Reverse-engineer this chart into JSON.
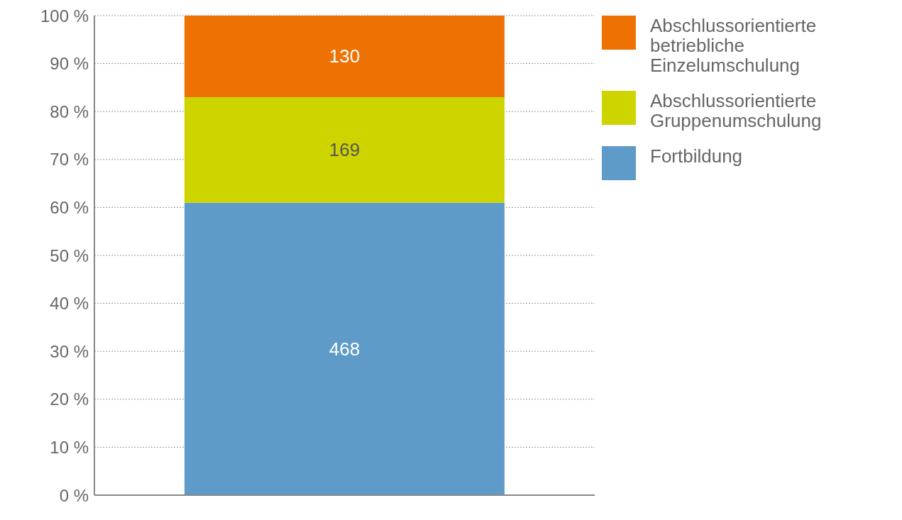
{
  "chart_data": {
    "type": "bar",
    "stacked": true,
    "categories": [
      null
    ],
    "series": [
      {
        "name": "Fortbildung",
        "color": "#5e9bc8",
        "values": [
          61.0
        ]
      },
      {
        "name": "Abschlussorientierte Gruppenumschulung",
        "color": "#cdd400",
        "values": [
          22.0
        ]
      },
      {
        "name": "Abschlussorientierte betriebliche Einzelumschulung",
        "color": "#ee7203",
        "values": [
          17.0
        ]
      }
    ],
    "annotations": [
      "468",
      "169",
      "130"
    ],
    "ylim": [
      0,
      100
    ],
    "yticks": [
      {
        "value": 0,
        "label": "0 %"
      },
      {
        "value": 10,
        "label": "10 %"
      },
      {
        "value": 20,
        "label": "20 %"
      },
      {
        "value": 30,
        "label": "30 %"
      },
      {
        "value": 40,
        "label": "40 %"
      },
      {
        "value": 50,
        "label": "50 %"
      },
      {
        "value": 60,
        "label": "60 %"
      },
      {
        "value": 70,
        "label": "70 %"
      },
      {
        "value": 80,
        "label": "80 %"
      },
      {
        "value": 90,
        "label": "90 %"
      },
      {
        "value": 100,
        "label": "100 %"
      }
    ],
    "grid": "y",
    "legend": "top right"
  }
}
